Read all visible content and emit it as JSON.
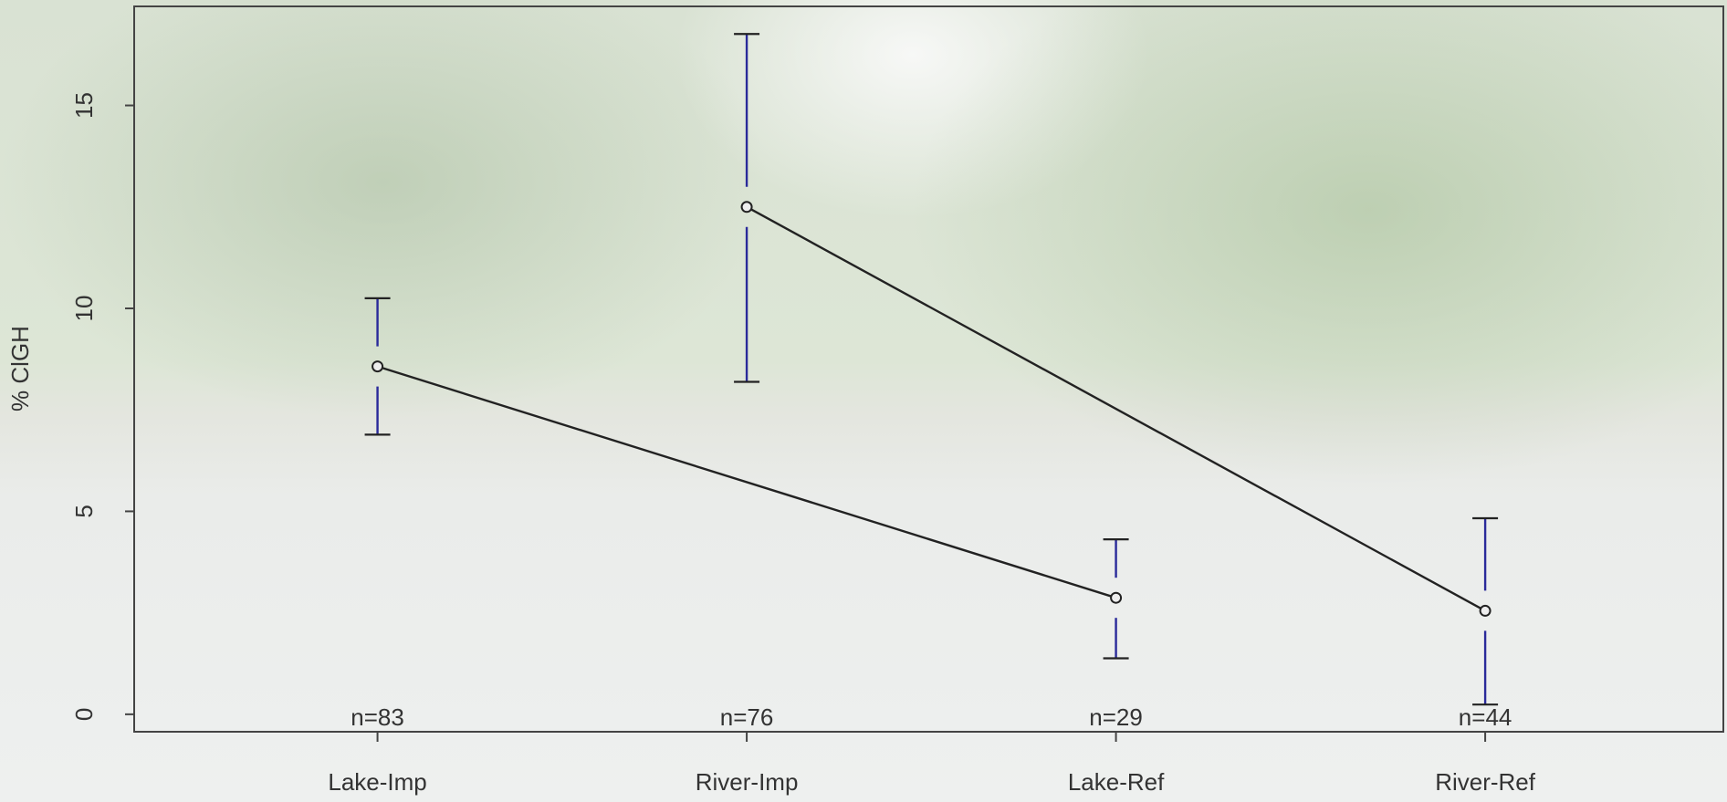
{
  "chart_data": {
    "type": "line",
    "y_label": "% ClGH",
    "xlim": [
      0.341,
      4.645
    ],
    "xticks": [
      {
        "value": 1,
        "label": "Lake-Imp"
      },
      {
        "value": 2,
        "label": "River-Imp"
      },
      {
        "value": 3,
        "label": "Lake-Ref"
      },
      {
        "value": 4,
        "label": "River-Ref"
      }
    ],
    "ylim": [
      -0.43,
      17.44
    ],
    "yticks": [
      0,
      5,
      10,
      15
    ],
    "series": [
      {
        "color": "#222222",
        "bar_color": "#2a2a9a",
        "x": [
          1,
          3
        ],
        "values": [
          8.57,
          2.87
        ],
        "upper": [
          10.25,
          4.31
        ],
        "lower": [
          6.89,
          1.38
        ],
        "n_labels": [
          "n=83",
          "n=29"
        ]
      },
      {
        "color": "#222222",
        "bar_color": "#2a2a9a",
        "x": [
          2,
          4
        ],
        "values": [
          12.5,
          2.55
        ],
        "upper": [
          16.76,
          4.83
        ],
        "lower": [
          8.19,
          0.24
        ],
        "n_labels": [
          "n=76",
          "n=44"
        ]
      }
    ]
  }
}
